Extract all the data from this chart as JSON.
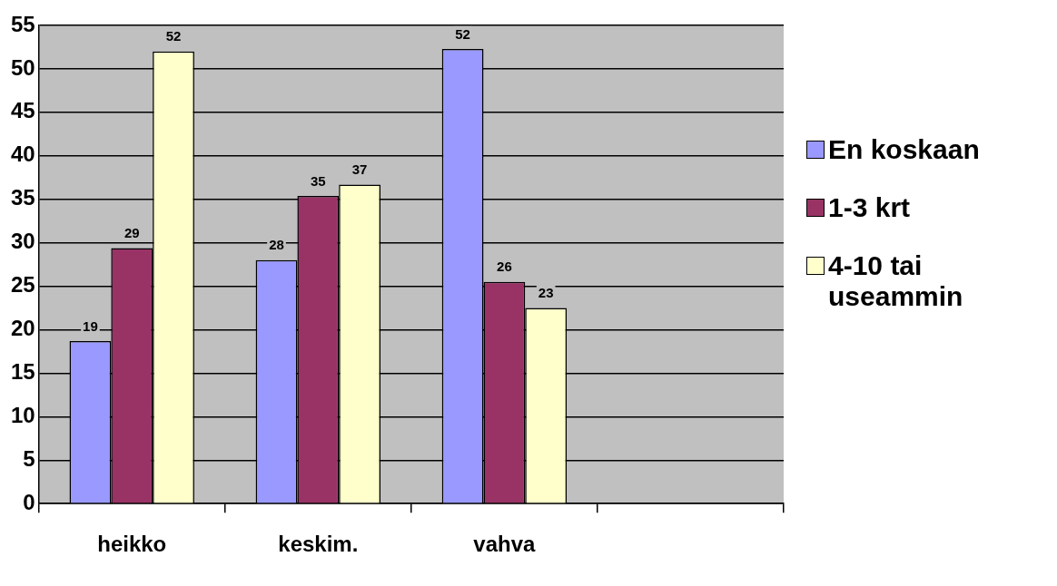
{
  "chart_data": {
    "type": "bar",
    "categories": [
      "heikko",
      "keskim.",
      "vahva",
      null
    ],
    "series": [
      {
        "name": "En koskaan",
        "color": "#9999ff",
        "values": [
          18.7,
          28,
          52.3,
          null
        ],
        "value_labels": [
          "19",
          "28",
          "52",
          null
        ]
      },
      {
        "name": "1-3 krt",
        "color": "#993366",
        "values": [
          29.4,
          35.4,
          25.5,
          null
        ],
        "value_labels": [
          "29",
          "35",
          "26",
          null
        ]
      },
      {
        "name": "4-10 tai useammin",
        "color": "#ffffcc",
        "values": [
          52,
          36.7,
          22.5,
          null
        ],
        "value_labels": [
          "52",
          "37",
          "23",
          null
        ]
      }
    ],
    "ylim": [
      0,
      55
    ],
    "yticks": [
      0,
      5,
      10,
      15,
      20,
      25,
      30,
      35,
      40,
      45,
      50,
      55
    ],
    "grid": "y",
    "legend": "right"
  }
}
